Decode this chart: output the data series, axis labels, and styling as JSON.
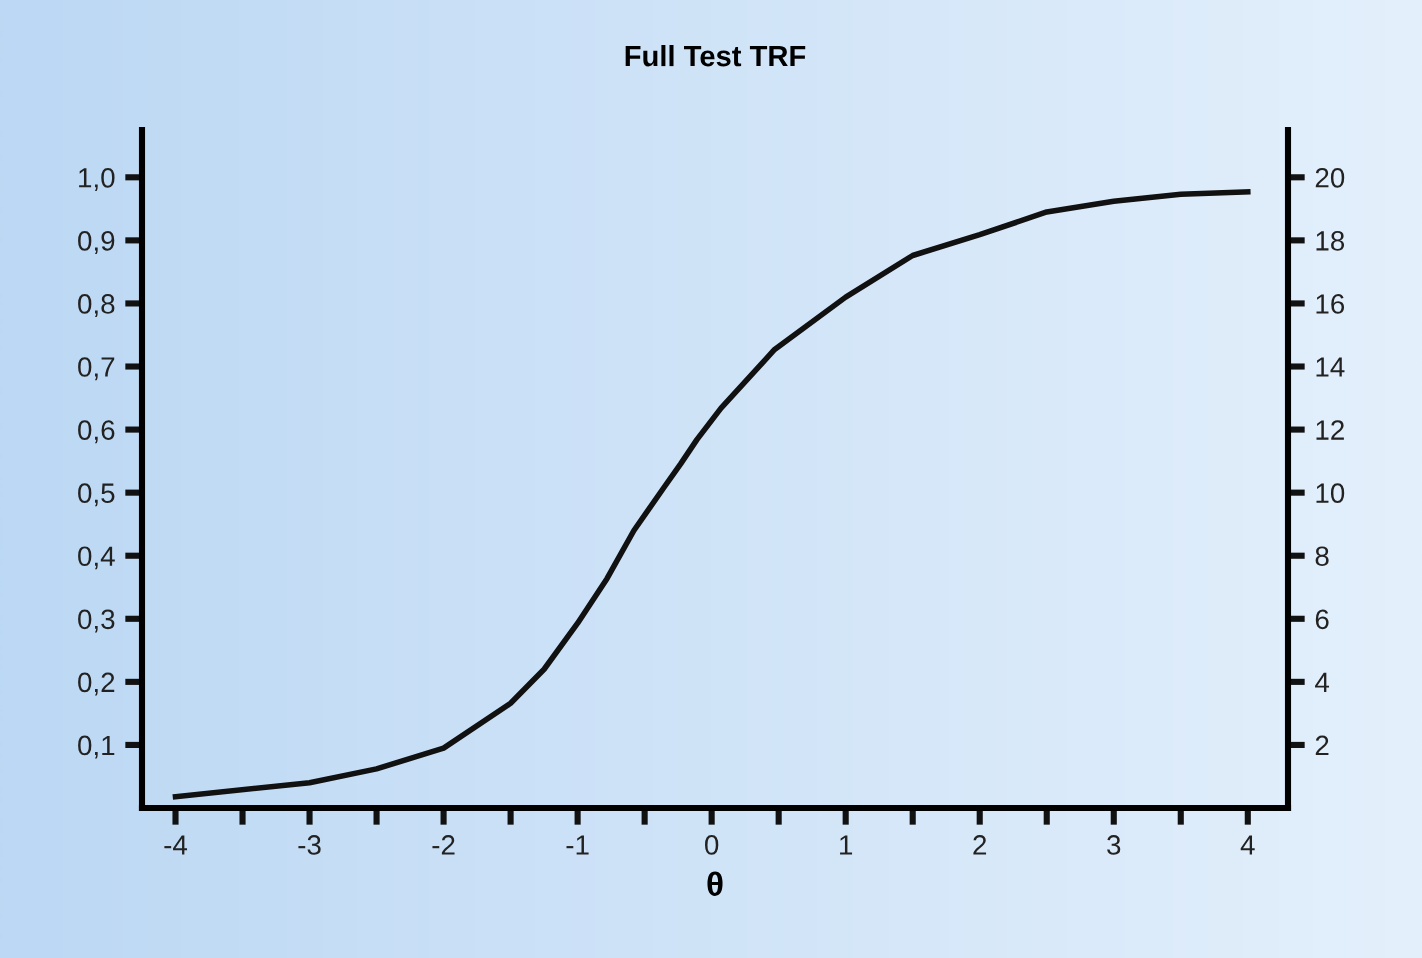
{
  "chart_data": {
    "type": "line",
    "title": "Full Test TRF",
    "xlabel": "θ",
    "x": [
      -4,
      -3,
      -2.5,
      -2,
      -1.5,
      -1.25,
      -1,
      -0.78,
      -0.58,
      -0.36,
      -0.23,
      -0.11,
      0.07,
      0.47,
      1,
      1.5,
      2,
      2.5,
      3,
      3.5,
      4
    ],
    "series": [
      {
        "color": "#111111",
        "values": [
          0.018,
          0.04,
          0.062,
          0.095,
          0.166,
          0.22,
          0.293,
          0.364,
          0.44,
          0.507,
          0.546,
          0.584,
          0.634,
          0.727,
          0.81,
          0.876,
          0.909,
          0.945,
          0.962,
          0.973,
          0.977
        ]
      }
    ],
    "xlim": [
      -4.25,
      4.3
    ],
    "xticks": [
      -4,
      {
        "value": -3.5,
        "label": null
      },
      -3,
      {
        "value": -2.5,
        "label": null
      },
      -2,
      {
        "value": -1.5,
        "label": null
      },
      -1,
      {
        "value": -0.5,
        "label": null
      },
      0,
      {
        "value": 0.5,
        "label": null
      },
      1,
      {
        "value": 1.5,
        "label": null
      },
      2,
      {
        "value": 2.5,
        "label": null
      },
      3,
      {
        "value": 3.5,
        "label": null
      },
      4
    ],
    "ylim": [
      0,
      1.075
    ],
    "yticks": [
      {
        "value": 0.1,
        "label": "0,1"
      },
      {
        "value": 0.2,
        "label": "0,2"
      },
      {
        "value": 0.3,
        "label": "0,3"
      },
      {
        "value": 0.4,
        "label": "0,4"
      },
      {
        "value": 0.5,
        "label": "0,5"
      },
      {
        "value": 0.6,
        "label": "0,6"
      },
      {
        "value": 0.7,
        "label": "0,7"
      },
      {
        "value": 0.8,
        "label": "0,8"
      },
      {
        "value": 0.9,
        "label": "0,9"
      },
      {
        "value": 1.0,
        "label": "1,0"
      }
    ],
    "y2lim": [
      0,
      21.5
    ],
    "y2ticks": [
      2,
      4,
      6,
      8,
      10,
      12,
      14,
      16,
      18,
      20
    ],
    "grid": false,
    "legend": false,
    "marker": "none",
    "line_style": "solid"
  }
}
